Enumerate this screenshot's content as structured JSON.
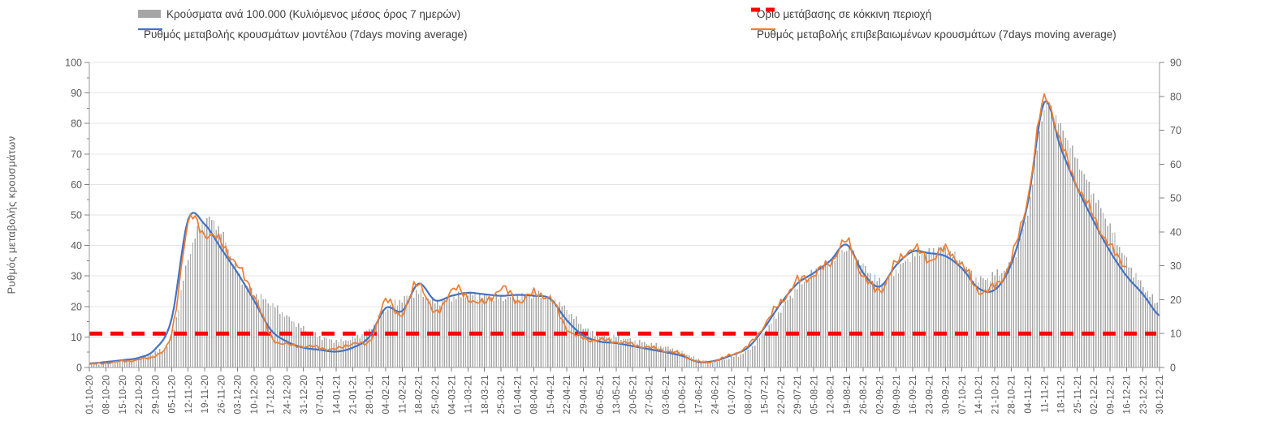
{
  "chart_data": {
    "type": "combo",
    "title": "",
    "legend_position": "top",
    "grid": "horizontal",
    "categories": [
      "01-10-20",
      "08-10-20",
      "15-10-20",
      "22-10-20",
      "29-10-20",
      "05-11-20",
      "12-11-20",
      "19-11-20",
      "26-11-20",
      "03-12-20",
      "10-12-20",
      "17-12-20",
      "24-12-20",
      "31-12-20",
      "07-01-21",
      "14-01-21",
      "21-01-21",
      "28-01-21",
      "04-02-21",
      "11-02-21",
      "18-02-21",
      "25-02-21",
      "04-03-21",
      "11-03-21",
      "18-03-21",
      "25-03-21",
      "01-04-21",
      "08-04-21",
      "15-04-21",
      "22-04-21",
      "29-04-21",
      "06-05-21",
      "13-05-21",
      "20-05-21",
      "27-05-21",
      "03-06-21",
      "10-06-21",
      "17-06-21",
      "24-06-21",
      "01-07-21",
      "08-07-21",
      "15-07-21",
      "22-07-21",
      "29-07-21",
      "05-08-21",
      "12-08-21",
      "19-08-21",
      "26-08-21",
      "02-09-21",
      "09-09-21",
      "16-09-21",
      "23-09-21",
      "30-09-21",
      "07-10-21",
      "14-10-21",
      "21-10-21",
      "28-10-21",
      "04-11-21",
      "11-11-21",
      "18-11-21",
      "25-11-21",
      "02-12-21",
      "09-12-21",
      "16-12-21",
      "23-12-21",
      "30-12-21"
    ],
    "days_per_category": 7,
    "axes": {
      "left": {
        "min": 0,
        "max": 100,
        "step": 10,
        "ticks": [
          0,
          10,
          20,
          30,
          40,
          50,
          60,
          70,
          80,
          90,
          100
        ],
        "title": "Ρυθμός μεταβολής κρουσμάτων"
      },
      "right": {
        "min": 0,
        "max": 90,
        "step": 10,
        "ticks": [
          0,
          10,
          20,
          30,
          40,
          50,
          60,
          70,
          80,
          90
        ],
        "title": ""
      }
    },
    "threshold": {
      "name": "Όριο μετάβασης σε κόκκινη περιοχή",
      "value": 10,
      "axis": "right",
      "color": "#ff0000",
      "style": "dashed"
    },
    "series": [
      {
        "name": "Κρούσματα ανά 100.000 (Κυλιόμενος μέσος όρος 7 ημερών)",
        "type": "bar",
        "axis": "right",
        "color": "#a6a6a6",
        "resolution": "daily",
        "values": [
          1.1,
          1.5,
          2.0,
          2.8,
          4.5,
          9,
          32,
          43.5,
          40,
          28,
          22,
          19,
          15,
          11.5,
          9.1,
          7.9,
          8.6,
          11,
          17,
          20,
          22,
          19.5,
          20.5,
          21.5,
          21,
          20.5,
          21,
          21.5,
          20.5,
          17,
          12,
          9.5,
          9,
          8,
          7,
          6,
          4.5,
          2.4,
          1.8,
          3,
          5,
          10.5,
          17,
          23.5,
          28,
          31,
          35,
          30,
          25.5,
          28.5,
          33,
          34,
          35,
          30.5,
          26,
          27.5,
          31,
          46,
          76,
          71,
          61,
          51,
          41.5,
          31.5,
          24,
          18.5
        ]
      },
      {
        "name": "Ρυθμός μεταβολής κρουσμάτων μοντέλου (7days moving average)",
        "type": "line",
        "axis": "left",
        "color": "#4472c4",
        "line_style": "smooth",
        "values": [
          1.3,
          1.8,
          2.4,
          3.2,
          6,
          16,
          48.5,
          47,
          39,
          31,
          22,
          12.5,
          8.5,
          6.5,
          5.8,
          5.2,
          6.5,
          10,
          19.5,
          18.5,
          27.5,
          22,
          23.5,
          24.5,
          24,
          23.5,
          23.8,
          23.5,
          22.5,
          15.5,
          10.5,
          8.5,
          8,
          7,
          6,
          5,
          3.8,
          1.8,
          2.2,
          4,
          6.5,
          13,
          21,
          27.5,
          31,
          35,
          40.3,
          31,
          26.5,
          33.5,
          38,
          37.5,
          36.5,
          32.5,
          26,
          25.5,
          34,
          54,
          87,
          72,
          59,
          48,
          38,
          30,
          24,
          17
        ]
      },
      {
        "name": "Ρυθμός μεταβολής επιβεβαιωμένων κρουσμάτων (7days moving average)",
        "type": "line",
        "axis": "left",
        "color": "#ed7d31",
        "line_style": "jagged",
        "values": [
          1.0,
          1.5,
          2.0,
          2.6,
          4,
          11,
          47,
          44,
          41,
          33,
          24,
          10.5,
          7.5,
          7,
          6.5,
          6,
          8,
          8.5,
          21.5,
          17.5,
          28,
          17.5,
          25.5,
          23,
          21,
          26,
          22,
          24,
          22.5,
          13,
          9.5,
          9,
          8.5,
          7.5,
          6.5,
          5.5,
          4.2,
          1.8,
          2.2,
          4.2,
          7,
          14,
          21.5,
          28,
          30.5,
          34.5,
          41,
          30,
          25.5,
          34,
          39,
          35.5,
          38.5,
          33.5,
          25.5,
          26.5,
          35.5,
          56,
          88,
          73.5,
          60,
          49.5,
          39.5,
          33.5,
          null,
          null
        ]
      }
    ]
  }
}
